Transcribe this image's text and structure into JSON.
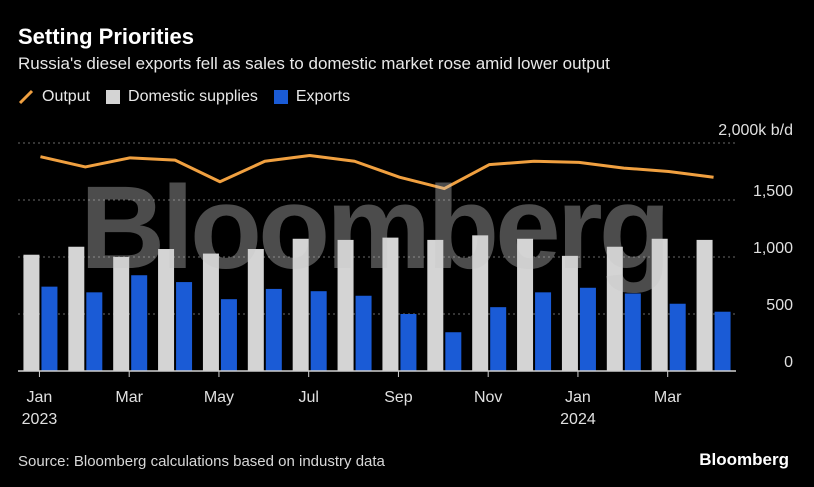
{
  "title": "Setting Priorities",
  "subtitle": "Russia's diesel exports fell as sales to domestic market rose amid lower output",
  "source": "Source: Bloomberg calculations based on industry data",
  "brand": "Bloomberg",
  "watermark": "Bloomberg",
  "colors": {
    "output": "#f0a040",
    "domestic": "#d4d4d4",
    "exports": "#1a5bd6",
    "grid": "#6a6a6a"
  },
  "chart_data": {
    "type": "bar",
    "unit_label": "2,000k b/d",
    "ylim": [
      0,
      2000
    ],
    "yticks": [
      0,
      500,
      1000,
      1500
    ],
    "ytick_labels": [
      "0",
      "500",
      "1,000",
      "1,500"
    ],
    "grid": true,
    "legend": "top-left",
    "categories": [
      "Jan 2023",
      "Feb 2023",
      "Mar 2023",
      "Apr 2023",
      "May 2023",
      "Jun 2023",
      "Jul 2023",
      "Aug 2023",
      "Sep 2023",
      "Oct 2023",
      "Nov 2023",
      "Dec 2023",
      "Jan 2024",
      "Feb 2024",
      "Mar 2024",
      "Apr 2024"
    ],
    "xtick_labels": [
      {
        "index": 0,
        "month": "Jan",
        "year": "2023"
      },
      {
        "index": 2,
        "month": "Mar",
        "year": ""
      },
      {
        "index": 4,
        "month": "May",
        "year": ""
      },
      {
        "index": 6,
        "month": "Jul",
        "year": ""
      },
      {
        "index": 8,
        "month": "Sep",
        "year": ""
      },
      {
        "index": 10,
        "month": "Nov",
        "year": ""
      },
      {
        "index": 12,
        "month": "Jan",
        "year": "2024"
      },
      {
        "index": 14,
        "month": "Mar",
        "year": ""
      }
    ],
    "series": [
      {
        "name": "Output",
        "kind": "line",
        "values": [
          1880,
          1790,
          1870,
          1850,
          1660,
          1840,
          1890,
          1840,
          1700,
          1600,
          1810,
          1840,
          1830,
          1780,
          1750,
          1700
        ]
      },
      {
        "name": "Domestic supplies",
        "kind": "bar",
        "values": [
          1020,
          1090,
          1000,
          1070,
          1030,
          1070,
          1160,
          1150,
          1170,
          1150,
          1190,
          1160,
          1010,
          1090,
          1160,
          1150
        ]
      },
      {
        "name": "Exports",
        "kind": "bar",
        "values": [
          740,
          690,
          840,
          780,
          630,
          720,
          700,
          660,
          500,
          340,
          560,
          690,
          730,
          680,
          590,
          520
        ]
      }
    ]
  }
}
